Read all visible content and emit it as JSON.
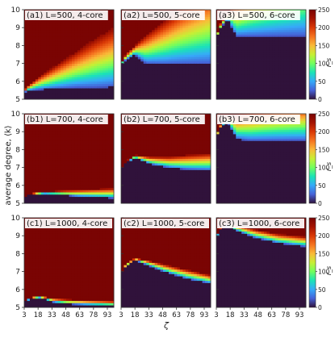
{
  "figure": {
    "xlabel": "ζ",
    "ylabel": "average degree, ⟨k⟩",
    "colorbar_label": "r_s",
    "colorbar_ticks": [
      0,
      50,
      100,
      150,
      200,
      250
    ],
    "colorbar_range": [
      0,
      250
    ],
    "colormap": "turbo",
    "low_color": "#30123b",
    "high_color": "#7a0403"
  },
  "chart_data": [
    {
      "type": "heatmap",
      "title": "(a1) L=500,  4-core",
      "x_ticks": [],
      "y_ticks": [
        5,
        6,
        7,
        8,
        9,
        10
      ],
      "xlim": [
        3,
        100
      ],
      "ylim": [
        5,
        10
      ],
      "boundary": {
        "zeta": [
          3,
          8,
          20,
          40,
          60,
          80,
          100
        ],
        "k": [
          5.4,
          5.5,
          5.55,
          5.6,
          5.65,
          5.65,
          5.7
        ]
      },
      "front": {
        "zeta": [
          3,
          8,
          20,
          40,
          60,
          80,
          100
        ],
        "k": [
          5.5,
          5.8,
          6.3,
          7.0,
          7.7,
          8.4,
          9.0
        ]
      },
      "above": "high"
    },
    {
      "type": "heatmap",
      "title": "(a2) L=500,  5-core",
      "x_ticks": [],
      "y_ticks": [],
      "xlim": [
        3,
        100
      ],
      "ylim": [
        5,
        10
      ],
      "boundary": {
        "zeta": [
          3,
          8,
          18,
          30,
          50,
          70,
          100
        ],
        "k": [
          6.95,
          7.2,
          7.5,
          7.0,
          6.95,
          6.95,
          6.95
        ]
      },
      "front": {
        "zeta": [
          3,
          8,
          18,
          30,
          50,
          70,
          100
        ],
        "k": [
          7.0,
          7.5,
          8.0,
          8.6,
          9.4,
          10.2,
          11.2
        ]
      },
      "above": "high"
    },
    {
      "type": "heatmap",
      "title": "(a3) L=500,  6-core",
      "x_ticks": [],
      "y_ticks": [],
      "xlim": [
        3,
        100
      ],
      "ylim": [
        5,
        10
      ],
      "boundary": {
        "zeta": [
          3,
          8,
          15,
          25,
          40,
          70,
          100
        ],
        "k": [
          8.4,
          9.0,
          9.5,
          8.5,
          8.5,
          8.5,
          8.5
        ]
      },
      "front": {
        "zeta": [
          3,
          8,
          15,
          25,
          40,
          70,
          100
        ],
        "k": [
          8.6,
          9.3,
          9.8,
          10.4,
          11.0,
          12.0,
          13.0
        ]
      },
      "above": "high"
    },
    {
      "type": "heatmap",
      "title": "(b1) L=700,  4-core",
      "x_ticks": [],
      "y_ticks": [
        5,
        6,
        7,
        8,
        9,
        10
      ],
      "xlim": [
        3,
        100
      ],
      "ylim": [
        5,
        10
      ],
      "boundary": {
        "zeta": [
          3,
          10,
          25,
          40,
          60,
          80,
          100
        ],
        "k": [
          5.35,
          5.5,
          5.55,
          5.5,
          5.4,
          5.35,
          5.3
        ]
      },
      "front": {
        "zeta": [
          3,
          10,
          25,
          40,
          60,
          80,
          100
        ],
        "k": [
          5.4,
          5.55,
          5.65,
          5.7,
          5.75,
          5.8,
          5.85
        ]
      },
      "above": "high"
    },
    {
      "type": "heatmap",
      "title": "(b2) L=700,  5-core",
      "x_ticks": [],
      "y_ticks": [],
      "xlim": [
        3,
        100
      ],
      "ylim": [
        5,
        10
      ],
      "boundary": {
        "zeta": [
          3,
          8,
          18,
          35,
          55,
          75,
          100
        ],
        "k": [
          6.85,
          7.25,
          7.55,
          7.2,
          7.0,
          6.9,
          6.85
        ]
      },
      "front": {
        "zeta": [
          3,
          8,
          18,
          35,
          55,
          75,
          100
        ],
        "k": [
          6.9,
          7.35,
          7.7,
          7.6,
          7.6,
          7.7,
          7.8
        ]
      },
      "above": "high"
    },
    {
      "type": "heatmap",
      "title": "(b3) L=700,  6-core",
      "x_ticks": [],
      "y_ticks": [],
      "xlim": [
        3,
        100
      ],
      "ylim": [
        5,
        10
      ],
      "boundary": {
        "zeta": [
          3,
          8,
          15,
          25,
          40,
          70,
          100
        ],
        "k": [
          8.7,
          9.3,
          9.6,
          8.6,
          8.5,
          8.5,
          8.5
        ]
      },
      "front": {
        "zeta": [
          3,
          8,
          15,
          25,
          40,
          70,
          100
        ],
        "k": [
          8.8,
          9.4,
          9.8,
          9.9,
          10.1,
          10.4,
          10.6
        ]
      },
      "above": "high"
    },
    {
      "type": "heatmap",
      "title": "(c1) L=1000,  4-core",
      "x_ticks": [
        3,
        18,
        33,
        48,
        63,
        78,
        93
      ],
      "y_ticks": [
        5,
        6,
        7,
        8,
        9,
        10
      ],
      "xlim": [
        3,
        100
      ],
      "ylim": [
        5,
        10
      ],
      "boundary": {
        "zeta": [
          3,
          10,
          20,
          35,
          50,
          70,
          100
        ],
        "k": [
          5.3,
          5.5,
          5.55,
          5.3,
          5.2,
          5.15,
          5.1
        ]
      },
      "front": {
        "zeta": [
          3,
          10,
          20,
          35,
          50,
          70,
          100
        ],
        "k": [
          5.35,
          5.55,
          5.65,
          5.5,
          5.45,
          5.4,
          5.35
        ]
      },
      "above": "high"
    },
    {
      "type": "heatmap",
      "title": "(c2) L=1000,  5-core",
      "x_ticks": [
        3,
        18,
        33,
        48,
        63,
        78,
        93
      ],
      "y_ticks": [],
      "xlim": [
        3,
        100
      ],
      "ylim": [
        5,
        10
      ],
      "boundary": {
        "zeta": [
          3,
          8,
          18,
          30,
          50,
          75,
          100
        ],
        "k": [
          6.8,
          7.3,
          7.65,
          7.4,
          7.0,
          6.6,
          6.35
        ]
      },
      "front": {
        "zeta": [
          3,
          8,
          18,
          30,
          50,
          75,
          100
        ],
        "k": [
          6.85,
          7.4,
          7.75,
          7.65,
          7.4,
          7.1,
          6.8
        ]
      },
      "above": "high"
    },
    {
      "type": "heatmap",
      "title": "(c3) L=1000,  6-core",
      "x_ticks": [
        3,
        18,
        33,
        48,
        63,
        78,
        93
      ],
      "y_ticks": [],
      "xlim": [
        3,
        100
      ],
      "ylim": [
        5,
        10
      ],
      "boundary": {
        "zeta": [
          3,
          8,
          15,
          25,
          45,
          70,
          100
        ],
        "k": [
          8.9,
          9.4,
          9.6,
          9.3,
          8.9,
          8.6,
          8.4
        ]
      },
      "front": {
        "zeta": [
          3,
          8,
          15,
          25,
          45,
          70,
          100
        ],
        "k": [
          8.95,
          9.5,
          9.7,
          9.6,
          9.35,
          9.1,
          8.95
        ]
      },
      "above": "high"
    }
  ]
}
